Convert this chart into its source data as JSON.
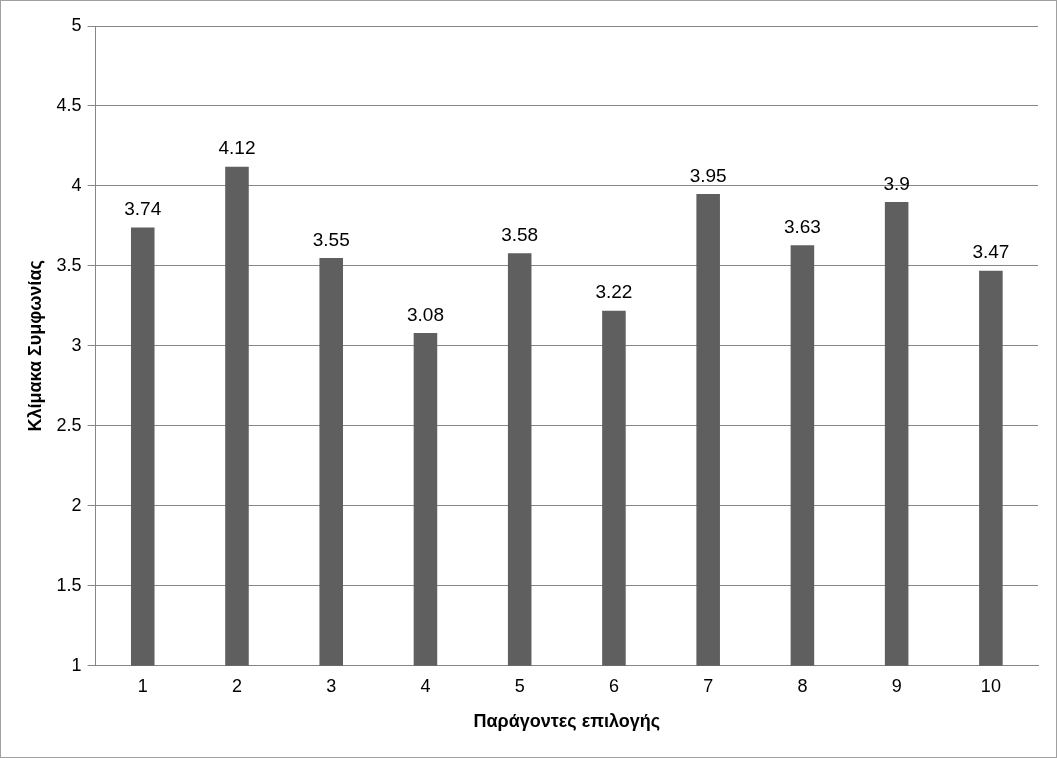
{
  "chart_data": {
    "type": "bar",
    "xlabel": "Παράγοντες επιλογής",
    "ylabel": "Κλίμακα Συμφωνίας",
    "categories": [
      "1",
      "2",
      "3",
      "4",
      "5",
      "6",
      "7",
      "8",
      "9",
      "10"
    ],
    "values": [
      3.74,
      4.12,
      3.55,
      3.08,
      3.58,
      3.22,
      3.95,
      3.63,
      3.9,
      3.47
    ],
    "color": "#5f5f5f",
    "ylim": [
      1,
      5
    ],
    "yticks": [
      1,
      1.5,
      2,
      2.5,
      3,
      3.5,
      4,
      4.5,
      5
    ],
    "grid": "y",
    "data_labels": true,
    "legend": false
  }
}
